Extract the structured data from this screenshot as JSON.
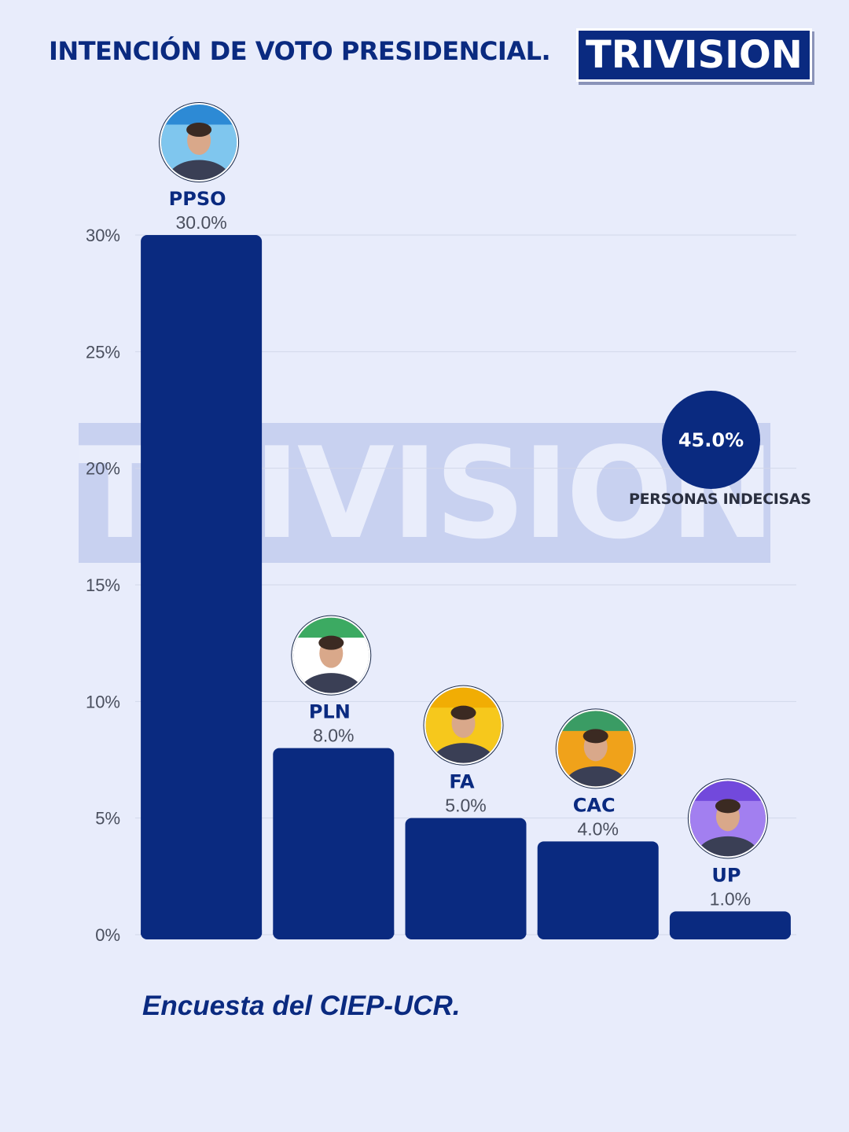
{
  "header": {
    "title": "INTENCIÓN DE VOTO PRESIDENCIAL."
  },
  "logo": {
    "text": "TRIVISION"
  },
  "watermark": {
    "text": "TRIVISION"
  },
  "undecided": {
    "value": "45.0%",
    "label": "PERSONAS INDECISAS"
  },
  "source": "Encuesta del CIEP-UCR.",
  "colors": {
    "bar": "#0a2a80",
    "background": "#e8ecfb",
    "text": "#0a2a80"
  },
  "chart_data": {
    "type": "bar",
    "categories": [
      "PPSO",
      "PLN",
      "FA",
      "CAC",
      "UP"
    ],
    "values": [
      30.0,
      8.0,
      5.0,
      4.0,
      1.0
    ],
    "value_labels": [
      "30.0%",
      "8.0%",
      "5.0%",
      "4.0%",
      "1.0%"
    ],
    "avatar_icons": [
      "candidate-ppso-avatar",
      "candidate-pln-avatar",
      "candidate-fa-avatar",
      "candidate-cac-avatar",
      "candidate-up-avatar"
    ],
    "avatar_colors": [
      {
        "bg": "#7fc6ee",
        "accent": "#1f7fd0"
      },
      {
        "bg": "#ffffff",
        "accent": "#1a9b46"
      },
      {
        "bg": "#f6c81c",
        "accent": "#f0a800"
      },
      {
        "bg": "#f0a21a",
        "accent": "#1a9b72"
      },
      {
        "bg": "#a27ff0",
        "accent": "#6a3fd8"
      }
    ],
    "yticks": [
      "0%",
      "5%",
      "10%",
      "15%",
      "20%",
      "25%",
      "30%"
    ],
    "ytick_values": [
      0,
      5,
      10,
      15,
      20,
      25,
      30
    ],
    "ylim": [
      0,
      30
    ],
    "grid": true,
    "title": "INTENCIÓN DE VOTO PRESIDENCIAL.",
    "xlabel": "",
    "ylabel": ""
  }
}
